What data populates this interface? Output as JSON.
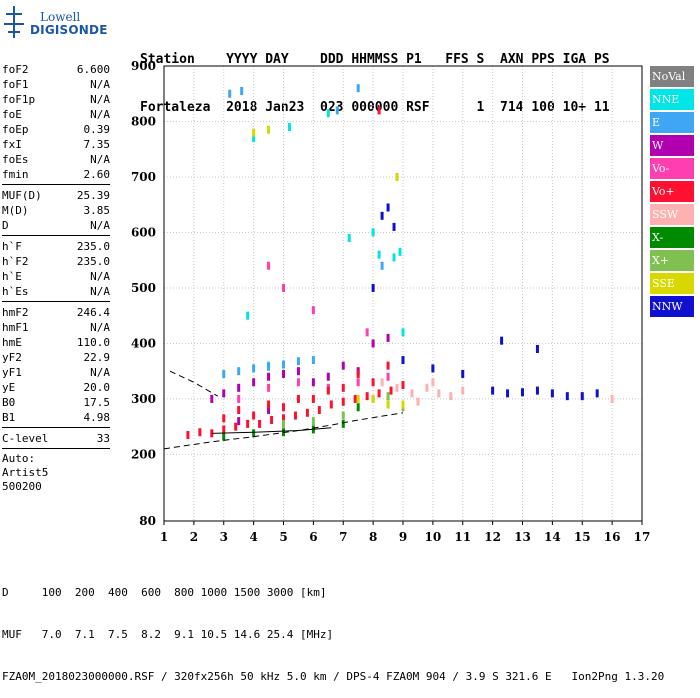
{
  "logo": {
    "line1": "Lowell",
    "line2": "DIGISONDE"
  },
  "header": {
    "labels": "Station    YYYY DAY    DDD HHMMSS P1   FFS S  AXN PPS IGA PS",
    "values": "Fortaleza  2018 Jan23  023 000000 RSF      1  714 100 10+ 11"
  },
  "params": {
    "group1": [
      {
        "k": "foF2",
        "v": "6.600"
      },
      {
        "k": "foF1",
        "v": "N/A"
      },
      {
        "k": "foF1p",
        "v": "N/A"
      },
      {
        "k": "foE",
        "v": "N/A"
      },
      {
        "k": "foEp",
        "v": "0.39"
      },
      {
        "k": "fxI",
        "v": "7.35"
      },
      {
        "k": "foEs",
        "v": "N/A"
      },
      {
        "k": "fmin",
        "v": "2.60"
      }
    ],
    "group2": [
      {
        "k": "MUF(D)",
        "v": "25.39"
      },
      {
        "k": "M(D)",
        "v": "3.85"
      },
      {
        "k": "D",
        "v": "N/A"
      }
    ],
    "group3": [
      {
        "k": "h`F",
        "v": "235.0"
      },
      {
        "k": "h`F2",
        "v": "235.0"
      },
      {
        "k": "h`E",
        "v": "N/A"
      },
      {
        "k": "h`Es",
        "v": "N/A"
      }
    ],
    "group4": [
      {
        "k": "hmF2",
        "v": "246.4"
      },
      {
        "k": "hmF1",
        "v": "N/A"
      },
      {
        "k": "hmE",
        "v": "110.0"
      },
      {
        "k": "yF2",
        "v": "22.9"
      },
      {
        "k": "yF1",
        "v": "N/A"
      },
      {
        "k": "yE",
        "v": "20.0"
      },
      {
        "k": "B0",
        "v": "17.5"
      },
      {
        "k": "B1",
        "v": "4.98"
      }
    ],
    "clevel": {
      "k": "C-level",
      "v": "33"
    },
    "auto": [
      "Auto:",
      "Artist5",
      "500200"
    ]
  },
  "legend": [
    {
      "label": "NoVal",
      "color": "#808080"
    },
    {
      "label": "NNE",
      "color": "#00e5e5"
    },
    {
      "label": "E",
      "color": "#3fa5f5"
    },
    {
      "label": "W",
      "color": "#b000b0"
    },
    {
      "label": "Vo-",
      "color": "#ff3fb0"
    },
    {
      "label": "Vo+",
      "color": "#ff1030"
    },
    {
      "label": "SSW",
      "color": "#ffb0b0"
    },
    {
      "label": "X-",
      "color": "#008a00"
    },
    {
      "label": "X+",
      "color": "#80c050"
    },
    {
      "label": "SSE",
      "color": "#d8d800"
    },
    {
      "label": "NNW",
      "color": "#1010d0"
    }
  ],
  "chart_data": {
    "type": "scatter",
    "xlim": [
      1,
      17
    ],
    "ylim": [
      80,
      900
    ],
    "xticks": [
      "1",
      "2",
      "3",
      "4",
      "5",
      "6",
      "7",
      "8",
      "9",
      "10",
      "11",
      "12",
      "13",
      "14",
      "15",
      "16",
      "17"
    ],
    "yticks": [
      "80",
      "200",
      "300",
      "400",
      "500",
      "600",
      "700",
      "800",
      "900"
    ],
    "grid": true,
    "clusters": [
      {
        "name": "NNE",
        "color": "#00e5e5",
        "points": [
          [
            4.0,
            770
          ],
          [
            5.2,
            790
          ],
          [
            6.5,
            815
          ],
          [
            7.2,
            590
          ],
          [
            8.2,
            560
          ],
          [
            8.7,
            555
          ],
          [
            8.9,
            565
          ],
          [
            8.0,
            600
          ],
          [
            3.8,
            450
          ],
          [
            4.5,
            360
          ],
          [
            9.0,
            420
          ]
        ]
      },
      {
        "name": "E",
        "color": "#3fa5f5",
        "points": [
          [
            3.0,
            345
          ],
          [
            3.5,
            350
          ],
          [
            4.0,
            355
          ],
          [
            4.5,
            358
          ],
          [
            5.0,
            362
          ],
          [
            5.5,
            368
          ],
          [
            6.0,
            370
          ],
          [
            3.2,
            850
          ],
          [
            3.6,
            855
          ],
          [
            6.8,
            820
          ],
          [
            7.5,
            860
          ],
          [
            8.3,
            540
          ]
        ]
      },
      {
        "name": "W",
        "color": "#b000b0",
        "points": [
          [
            2.6,
            300
          ],
          [
            3.0,
            310
          ],
          [
            3.5,
            320
          ],
          [
            4.0,
            330
          ],
          [
            4.5,
            340
          ],
          [
            5.0,
            345
          ],
          [
            5.5,
            350
          ],
          [
            6.0,
            330
          ],
          [
            6.5,
            340
          ],
          [
            7.0,
            360
          ],
          [
            7.5,
            350
          ],
          [
            8.0,
            400
          ],
          [
            8.5,
            410
          ],
          [
            3.5,
            260
          ],
          [
            4.5,
            280
          ]
        ]
      },
      {
        "name": "Vo-",
        "color": "#ff3fb0",
        "points": [
          [
            3.5,
            300
          ],
          [
            4.5,
            320
          ],
          [
            5.5,
            330
          ],
          [
            6.5,
            320
          ],
          [
            7.5,
            330
          ],
          [
            8.5,
            340
          ],
          [
            7.8,
            420
          ],
          [
            6.0,
            460
          ],
          [
            5.0,
            500
          ],
          [
            4.5,
            540
          ],
          [
            8.8,
            700
          ]
        ]
      },
      {
        "name": "Vo+",
        "color": "#ff1030",
        "points": [
          [
            1.8,
            235
          ],
          [
            2.2,
            240
          ],
          [
            2.6,
            238
          ],
          [
            3.0,
            245
          ],
          [
            3.4,
            250
          ],
          [
            3.8,
            255
          ],
          [
            4.2,
            255
          ],
          [
            4.6,
            262
          ],
          [
            5.0,
            265
          ],
          [
            5.4,
            270
          ],
          [
            5.8,
            275
          ],
          [
            6.2,
            280
          ],
          [
            6.6,
            290
          ],
          [
            7.0,
            295
          ],
          [
            7.4,
            300
          ],
          [
            7.8,
            305
          ],
          [
            8.2,
            310
          ],
          [
            8.6,
            315
          ],
          [
            9.0,
            325
          ],
          [
            3.0,
            265
          ],
          [
            4.0,
            270
          ],
          [
            5.0,
            285
          ],
          [
            6.0,
            300
          ],
          [
            7.0,
            320
          ],
          [
            8.0,
            330
          ],
          [
            8.5,
            360
          ],
          [
            7.5,
            345
          ],
          [
            6.5,
            315
          ],
          [
            5.5,
            300
          ],
          [
            4.5,
            290
          ],
          [
            3.5,
            280
          ],
          [
            8.2,
            820
          ]
        ]
      },
      {
        "name": "SSW",
        "color": "#ffb0b0",
        "points": [
          [
            8.3,
            330
          ],
          [
            8.8,
            320
          ],
          [
            9.3,
            310
          ],
          [
            9.8,
            320
          ],
          [
            10.2,
            310
          ],
          [
            10.6,
            305
          ],
          [
            11.0,
            315
          ],
          [
            10.0,
            330
          ],
          [
            9.5,
            295
          ],
          [
            14.0,
            310
          ],
          [
            15.0,
            305
          ],
          [
            16.0,
            300
          ]
        ]
      },
      {
        "name": "X-",
        "color": "#008a00",
        "points": [
          [
            3.0,
            232
          ],
          [
            4.0,
            238
          ],
          [
            5.0,
            240
          ],
          [
            6.0,
            245
          ],
          [
            7.0,
            255
          ],
          [
            7.5,
            285
          ],
          [
            8.5,
            290
          ]
        ]
      },
      {
        "name": "X+",
        "color": "#80c050",
        "points": [
          [
            5.0,
            255
          ],
          [
            6.0,
            260
          ],
          [
            7.0,
            270
          ],
          [
            8.0,
            300
          ],
          [
            8.5,
            305
          ],
          [
            9.0,
            285
          ]
        ]
      },
      {
        "name": "SSE",
        "color": "#d8d800",
        "points": [
          [
            4.0,
            780
          ],
          [
            4.5,
            785
          ],
          [
            8.0,
            300
          ],
          [
            8.5,
            290
          ],
          [
            8.8,
            700
          ],
          [
            7.5,
            300
          ],
          [
            9.0,
            290
          ]
        ]
      },
      {
        "name": "NNW",
        "color": "#1010d0",
        "points": [
          [
            12.0,
            315
          ],
          [
            12.5,
            310
          ],
          [
            13.0,
            312
          ],
          [
            13.5,
            315
          ],
          [
            14.0,
            310
          ],
          [
            14.5,
            305
          ],
          [
            15.0,
            305
          ],
          [
            15.5,
            310
          ],
          [
            8.5,
            645
          ],
          [
            8.3,
            630
          ],
          [
            8.7,
            610
          ],
          [
            8.0,
            500
          ],
          [
            9.0,
            370
          ],
          [
            10.0,
            355
          ],
          [
            11.0,
            345
          ],
          [
            12.3,
            405
          ],
          [
            13.5,
            390
          ]
        ]
      }
    ],
    "profile_lines": [
      {
        "x": [
          1.0,
          2.5,
          4.0,
          5.5,
          6.5,
          7.5,
          9.0
        ],
        "y": [
          210,
          222,
          232,
          243,
          252,
          262,
          275
        ],
        "style": "dashed"
      },
      {
        "x": [
          1.2,
          2.0,
          2.8
        ],
        "y": [
          350,
          330,
          305
        ],
        "style": "dashed"
      },
      {
        "x": [
          2.6,
          4.0,
          5.5,
          6.6
        ],
        "y": [
          238,
          240,
          243,
          248
        ],
        "style": "solid"
      }
    ]
  },
  "footer": {
    "line1": "D     100  200  400  600  800 1000 1500 3000 [km]",
    "line2": "MUF   7.0  7.1  7.5  8.2  9.1 10.5 14.6 25.4 [MHz]",
    "line3": "FZA0M_2018023000000.RSF / 320fx256h 50 kHz 5.0 km / DPS-4 FZA0M 904 / 3.9 S 321.6 E   Ion2Png 1.3.20"
  }
}
